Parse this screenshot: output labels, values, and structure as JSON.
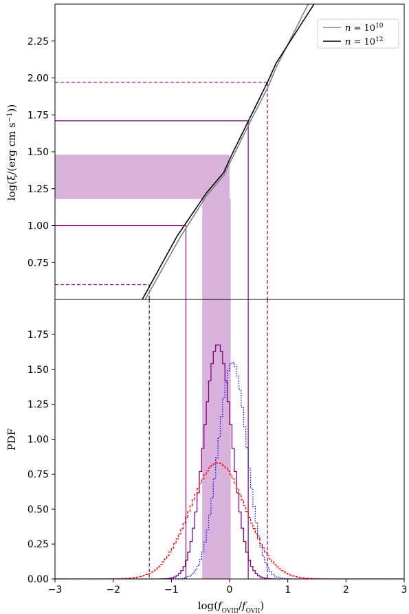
{
  "chart_data": [
    {
      "type": "line",
      "panel": "top",
      "ylabel": "log(ξ/(erg cm s⁻¹))",
      "xlim": [
        -3,
        3
      ],
      "ylim": [
        0.5,
        2.5
      ],
      "yticks": [
        "0.75",
        "1.00",
        "1.25",
        "1.50",
        "1.75",
        "2.00",
        "2.25"
      ],
      "ytick_values": [
        0.75,
        1.0,
        1.25,
        1.5,
        1.75,
        2.0,
        2.25
      ],
      "grid": false,
      "legend": {
        "placement": "top-right",
        "entries": [
          "n = 10^10",
          "n = 10^12"
        ]
      },
      "series": [
        {
          "name": "n = 10^10",
          "color": "#808080",
          "x": [
            -1.45,
            -0.85,
            -0.4,
            -0.1,
            0.05,
            0.35,
            0.65,
            0.8,
            1.35
          ],
          "y": [
            0.5,
            0.92,
            1.2,
            1.34,
            1.46,
            1.7,
            1.93,
            2.07,
            2.5
          ]
        },
        {
          "name": "n = 10^12",
          "color": "#000000",
          "x": [
            -1.5,
            -0.9,
            -0.4,
            -0.1,
            0.05,
            0.35,
            0.65,
            0.8,
            1.45
          ],
          "y": [
            0.5,
            0.93,
            1.22,
            1.36,
            1.49,
            1.73,
            1.97,
            2.1,
            2.5
          ]
        }
      ],
      "shaded_band": {
        "color": "#d8b2da",
        "y": [
          1.18,
          1.48
        ],
        "x_end": 0.0
      },
      "guides": [
        {
          "style": "dashed",
          "color": "#800080",
          "y": 1.97,
          "x": 0.65
        },
        {
          "style": "solid",
          "color": "#800080",
          "y": 1.71,
          "x": 0.32
        },
        {
          "style": "solid",
          "color": "#800080",
          "y": 1.0,
          "x": -0.75
        },
        {
          "style": "dashed",
          "color": "#800080",
          "y": 0.6,
          "x": -1.38
        }
      ]
    },
    {
      "type": "histogram",
      "panel": "bottom",
      "xlabel": "log(f_OVIII/f_OVII)",
      "ylabel": "PDF",
      "xlim": [
        -3,
        3
      ],
      "ylim": [
        0,
        2.0
      ],
      "xticks": [
        "−3",
        "−2",
        "−1",
        "0",
        "1",
        "2",
        "3"
      ],
      "xtick_values": [
        -3,
        -2,
        -1,
        0,
        1,
        2,
        3
      ],
      "yticks": [
        "0.00",
        "0.25",
        "0.50",
        "0.75",
        "1.00",
        "1.25",
        "1.50",
        "1.75"
      ],
      "ytick_values": [
        0,
        0.25,
        0.5,
        0.75,
        1.0,
        1.25,
        1.5,
        1.75
      ],
      "grid": false,
      "shaded_band": {
        "color": "#d8b2da",
        "x": [
          -0.47,
          0.02
        ]
      },
      "series": [
        {
          "color": "#800080",
          "linestyle": "solid",
          "mu": -0.2,
          "sigma": 0.24,
          "peak": 1.68
        },
        {
          "color": "#0000ff",
          "linestyle": "dotted",
          "mu": 0.05,
          "sigma": 0.25,
          "peak": 1.55
        },
        {
          "color": "#ff0000",
          "linestyle": "dashed",
          "mu": -0.2,
          "sigma": 0.48,
          "peak": 0.83
        }
      ],
      "guides_x": [
        {
          "style": "dashed",
          "color": "#800080",
          "x": -1.38
        },
        {
          "style": "solid",
          "color": "#800080",
          "x": -0.75
        },
        {
          "style": "solid",
          "color": "#800080",
          "x": 0.32
        },
        {
          "style": "dashed",
          "color": "#800080",
          "x": 0.65
        }
      ]
    }
  ]
}
